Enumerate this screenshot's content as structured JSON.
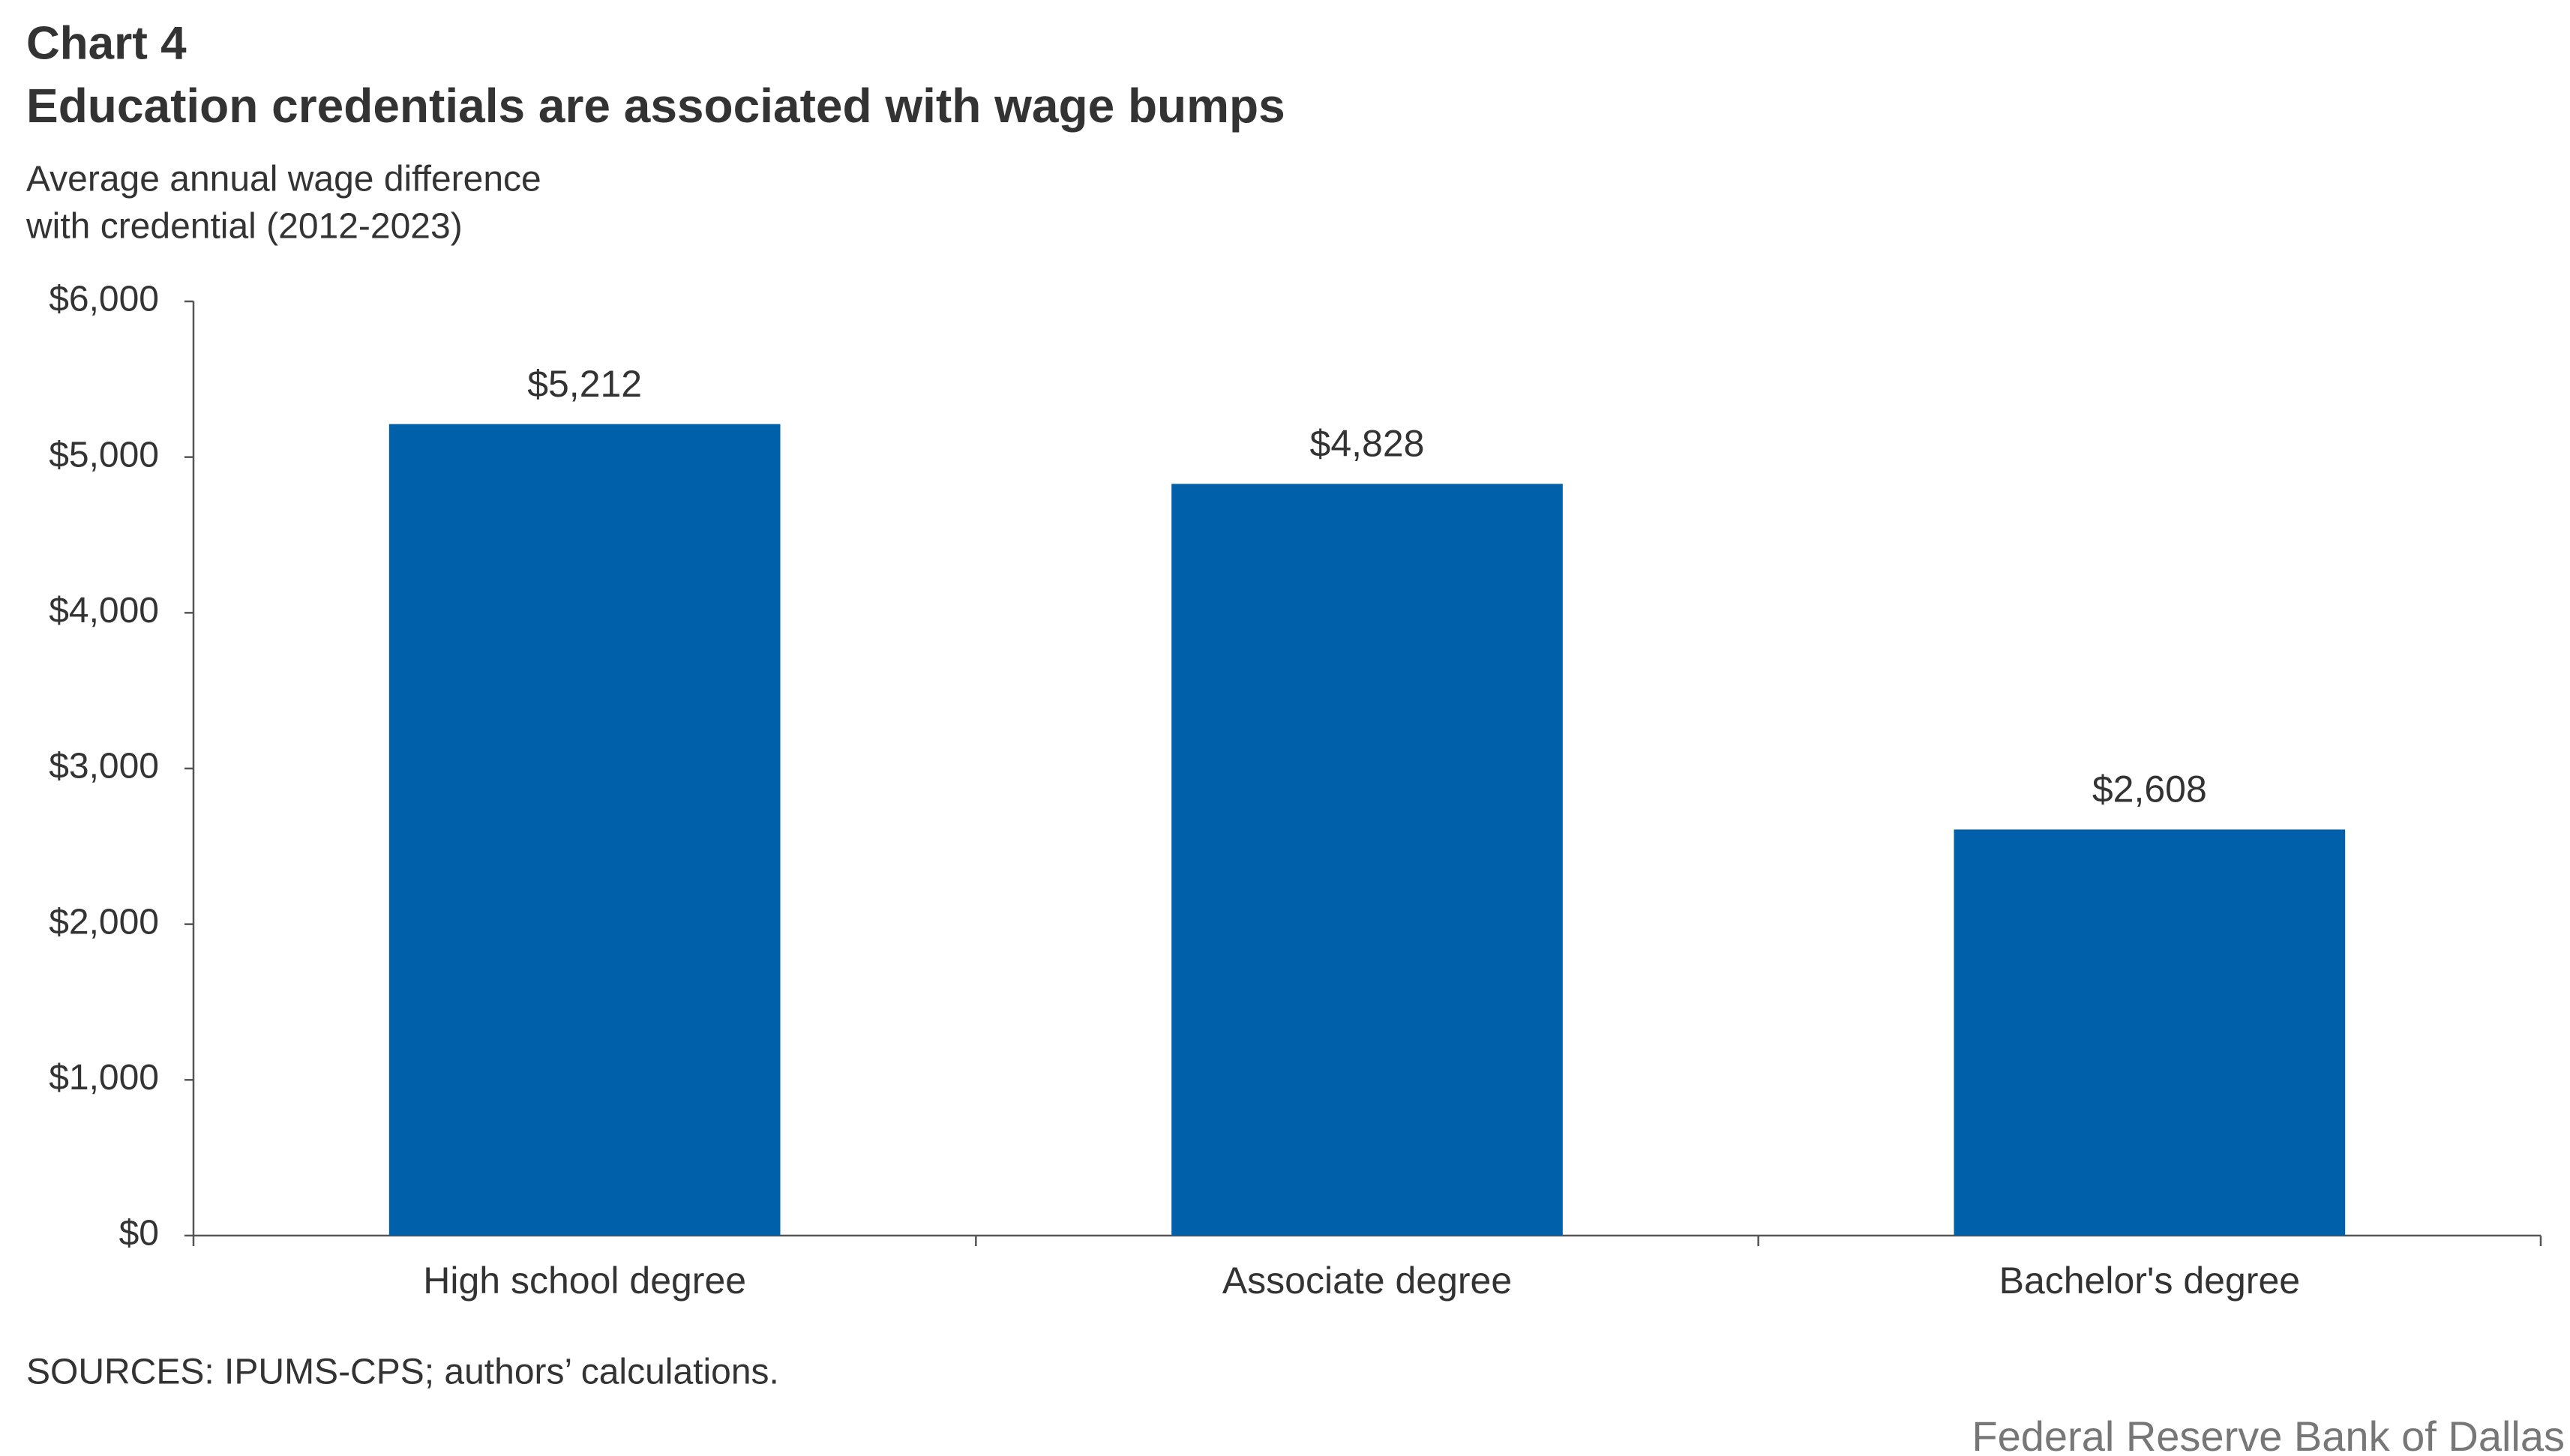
{
  "chart_data": {
    "type": "bar",
    "title": "Chart 4",
    "subtitle": "Education credentials are associated with wage bumps",
    "y_label": [
      "Average annual wage difference",
      "with credential (2012-2023)"
    ],
    "categories": [
      "High school degree",
      "Associate degree",
      "Bachelor's degree"
    ],
    "values": [
      5212,
      4828,
      2608
    ],
    "value_labels": [
      "$5,212",
      "$4,828",
      "$2,608"
    ],
    "color": "#0061aa",
    "ylim": [
      0,
      6000
    ],
    "yticks": [
      {
        "value": 0,
        "label": "$0"
      },
      {
        "value": 1000,
        "label": "$1,000"
      },
      {
        "value": 2000,
        "label": "$2,000"
      },
      {
        "value": 3000,
        "label": "$3,000"
      },
      {
        "value": 4000,
        "label": "$4,000"
      },
      {
        "value": 5000,
        "label": "$5,000"
      },
      {
        "value": 6000,
        "label": "$6,000"
      }
    ],
    "grid": false,
    "source": "SOURCES: IPUMS-CPS; authors’ calculations.",
    "credit": "Federal Reserve Bank of Dallas"
  }
}
